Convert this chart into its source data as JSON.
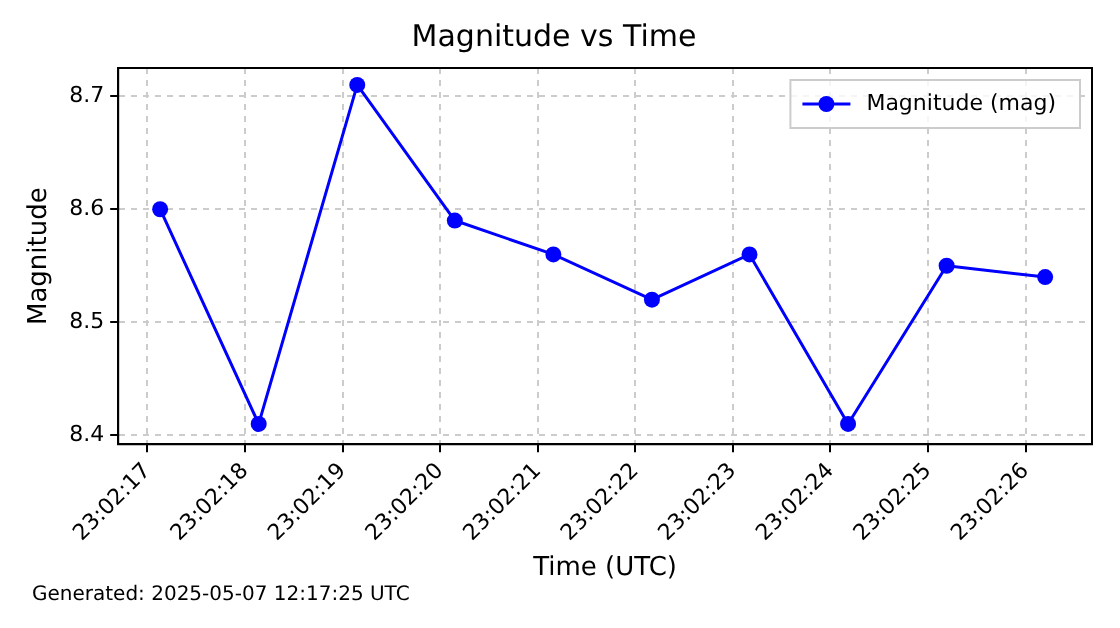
{
  "chart_data": {
    "type": "line",
    "title": "Magnitude vs Time",
    "xlabel": "Time (UTC)",
    "ylabel": "Magnitude",
    "x": [
      23.03809167,
      23.03837222,
      23.03865278,
      23.03893056,
      23.03921111,
      23.03949167,
      23.03976944,
      23.04005,
      23.04033056,
      23.04061111
    ],
    "series": [
      {
        "name": "Magnitude (mag)",
        "color": "#0000ff",
        "values": [
          8.6,
          8.41,
          8.71,
          8.59,
          8.56,
          8.52,
          8.56,
          8.41,
          8.55,
          8.54
        ]
      }
    ],
    "xlim": [
      23.03797222,
      23.04074444
    ],
    "xticks": [
      {
        "value": 23.03805556,
        "label": "23:02:17"
      },
      {
        "value": 23.03833333,
        "label": "23:02:18"
      },
      {
        "value": 23.03861111,
        "label": "23:02:19"
      },
      {
        "value": 23.03888889,
        "label": "23:02:20"
      },
      {
        "value": 23.03916667,
        "label": "23:02:21"
      },
      {
        "value": 23.03944444,
        "label": "23:02:22"
      },
      {
        "value": 23.03972222,
        "label": "23:02:23"
      },
      {
        "value": 23.04,
        "label": "23:02:24"
      },
      {
        "value": 23.04027778,
        "label": "23:02:25"
      },
      {
        "value": 23.04055556,
        "label": "23:02:26"
      }
    ],
    "ylim": [
      8.392,
      8.725
    ],
    "yticks": [
      8.4,
      8.5,
      8.6,
      8.7
    ],
    "grid": true,
    "legend": "top right",
    "marker": "circle",
    "line_style": "solid",
    "annotations": [
      "Generated: 2025-05-07 12:17:25 UTC"
    ]
  }
}
